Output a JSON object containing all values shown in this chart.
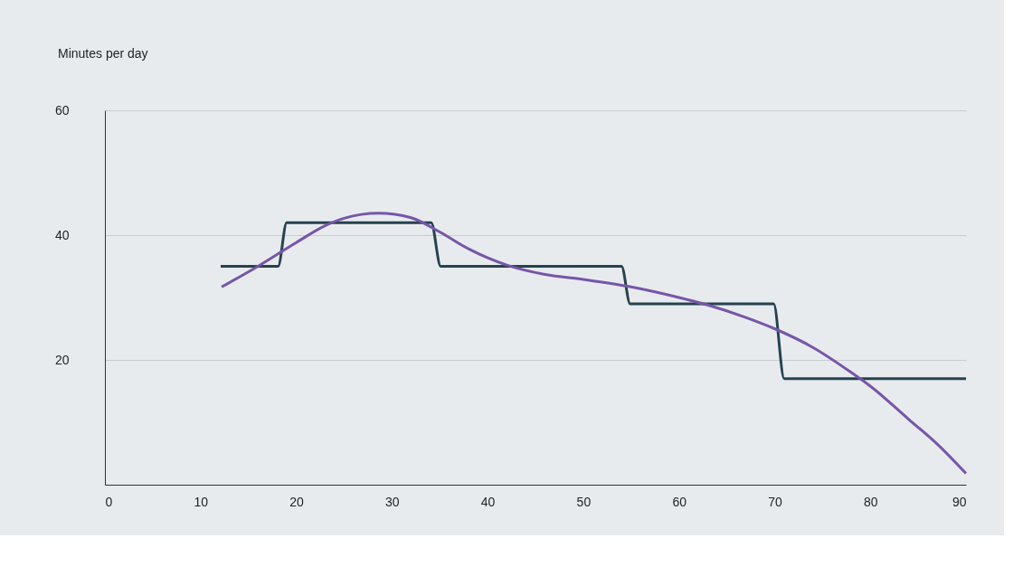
{
  "chart_data": {
    "type": "line",
    "ylabel": "Minutes per day",
    "xlim": [
      0,
      90
    ],
    "xticks": [
      0,
      10,
      20,
      30,
      40,
      50,
      60,
      70,
      80,
      90
    ],
    "ylim": [
      0,
      60
    ],
    "yticks": [
      20,
      40,
      60
    ],
    "grid": "y",
    "marker": "none",
    "line_style": "solid",
    "series": [
      {
        "color": "#25424f",
        "x": [
          12.1,
          18.1,
          19.0,
          34.1,
          35.1,
          54.0,
          54.9,
          69.9,
          71.0,
          90
        ],
        "values": [
          35,
          35,
          42,
          42,
          35,
          35,
          29,
          29,
          17,
          17
        ]
      },
      {
        "color": "#7656a8",
        "x": [
          12.2,
          16,
          20,
          23,
          25,
          28.6,
          32,
          35,
          38,
          42,
          46,
          50,
          55,
          60,
          63,
          67,
          70,
          74,
          78,
          80,
          84,
          87,
          90
        ],
        "values": [
          31.7,
          35,
          38.8,
          41.5,
          42.7,
          43.5,
          42.8,
          40.5,
          37.8,
          35.2,
          33.7,
          32.9,
          31.7,
          30.0,
          28.8,
          26.8,
          25,
          22,
          18,
          15.8,
          10.5,
          6.5,
          1.8
        ]
      }
    ]
  }
}
